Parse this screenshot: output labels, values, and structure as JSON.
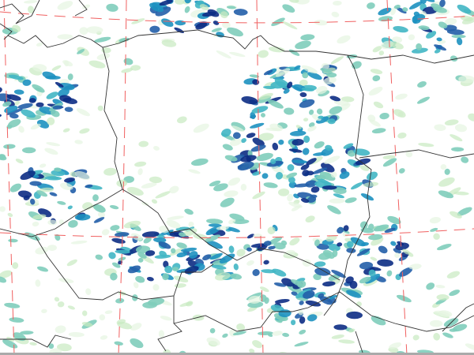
{
  "map": {
    "type": "precipitation field",
    "palette": [
      "#e6f5e1",
      "#c7e9c0",
      "#7fcdbb",
      "#41b6c4",
      "#1d91c0",
      "#225ea8",
      "#0c2c84"
    ],
    "border_color": "#333333",
    "graticule_color": "#f06060",
    "background": "#ffffff"
  }
}
